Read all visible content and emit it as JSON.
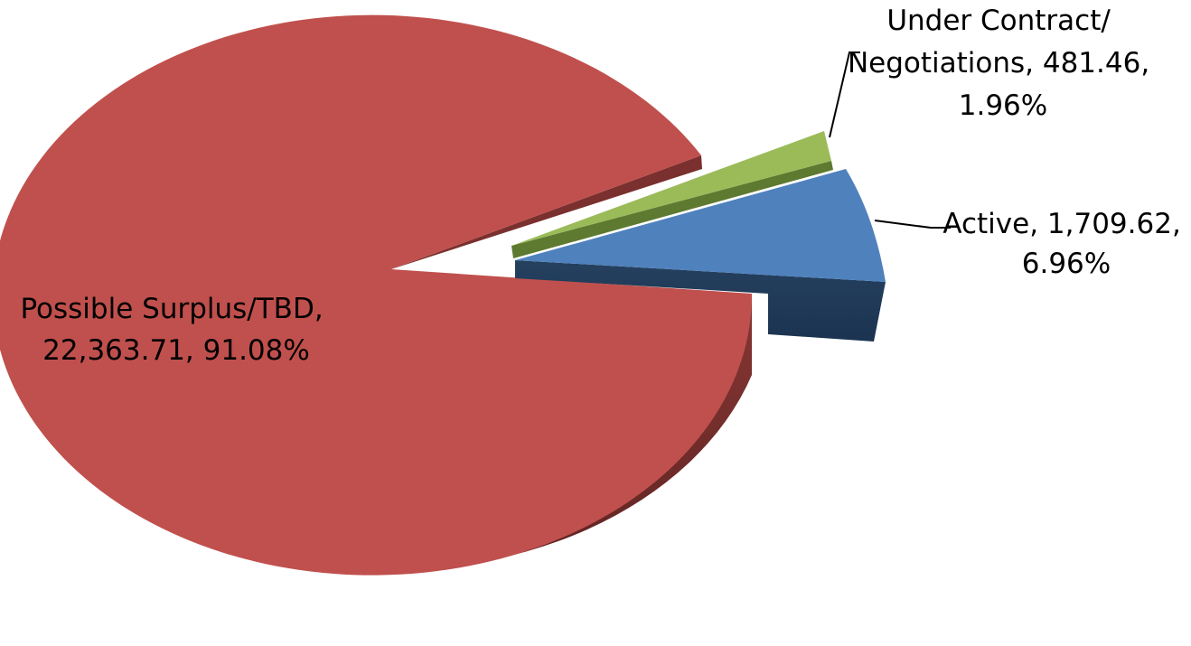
{
  "chart_data": {
    "type": "pie",
    "style": "3d-exploded",
    "slices": [
      {
        "name": "Possible Surplus/TBD",
        "value": 22363.71,
        "percent": 91.08,
        "label_lines": [
          "Possible Surplus/TBD,",
          "22,363.71, 91.08%"
        ],
        "color": "#c0504d",
        "side_color": "#7a302e",
        "exploded": false
      },
      {
        "name": "Active",
        "value": 1709.62,
        "percent": 6.96,
        "label_lines": [
          "Active, 1,709.62,",
          "6.96%"
        ],
        "color": "#4f81bd",
        "side_color": "#1f3a5c",
        "exploded": true
      },
      {
        "name": "Under Contract/ Negotiations",
        "value": 481.46,
        "percent": 1.96,
        "label_lines": [
          "Under Contract/",
          "Negotiations, 481.46,",
          "1.96%"
        ],
        "color": "#9bbb59",
        "side_color": "#5d7a30",
        "exploded": true
      }
    ],
    "legend": "none",
    "data_labels": "outside-with-leader-lines"
  }
}
